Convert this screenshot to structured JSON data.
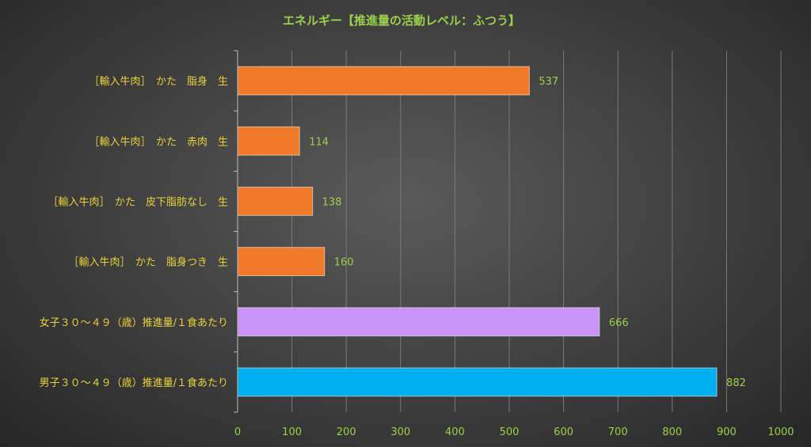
{
  "chart_data": {
    "type": "bar",
    "orientation": "horizontal",
    "title": "エネルギー【推進量の活動レベル：ふつう】",
    "categories": [
      "［輸入牛肉］　かた　脂身　生",
      "［輸入牛肉］　かた　赤肉　生",
      "［輸入牛肉］　かた　皮下脂肪なし　生",
      "［輸入牛肉］　かた　脂身つき　生",
      "女子３０～４９（歳）推進量/１食あたり",
      "男子３０～４９（歳）推進量/１食あたり"
    ],
    "values": [
      537,
      114,
      138,
      160,
      666,
      882
    ],
    "bar_colors": [
      "#f07a2a",
      "#f07a2a",
      "#f07a2a",
      "#f07a2a",
      "#c794f5",
      "#00b0ee"
    ],
    "xlim": [
      0,
      1000
    ],
    "x_ticks": [
      0,
      100,
      200,
      300,
      400,
      500,
      600,
      700,
      800,
      900,
      1000
    ],
    "grid": true,
    "data_labels": true,
    "legend": "none"
  }
}
